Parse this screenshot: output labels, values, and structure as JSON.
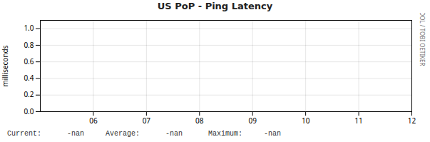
{
  "chart_data": {
    "type": "line",
    "title": "US PoP - Ping Latency",
    "ylabel": "milliseconds",
    "annotations": [
      "RRDTOOL / TOBI OETIKER",
      "Current:      -nan     Average:      -nan      Maximum:     -nan"
    ],
    "xlim": [
      5,
      12
    ],
    "xticks": [
      {
        "value": 6,
        "label": "06"
      },
      {
        "value": 7,
        "label": "07"
      },
      {
        "value": 8,
        "label": "08"
      },
      {
        "value": 9,
        "label": "09"
      },
      {
        "value": 10,
        "label": "10"
      },
      {
        "value": 11,
        "label": "11"
      },
      {
        "value": 12,
        "label": "12"
      }
    ],
    "ylim": [
      0,
      1.1
    ],
    "yticks": [
      {
        "value": 0.0,
        "label": "0.0"
      },
      0.2,
      0.4,
      0.6,
      0.8,
      {
        "value": 1.0,
        "label": "1.0"
      }
    ],
    "grid": true
  }
}
